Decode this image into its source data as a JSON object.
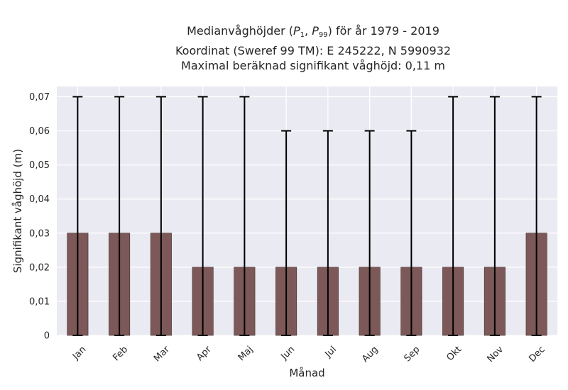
{
  "title": {
    "line1_prefix": "Medianvåghöjder (",
    "p1_sym": "P",
    "p1_sub": "1",
    "sep": ", ",
    "p99_sym": "P",
    "p99_sub": "99",
    "line1_suffix": ") för år 1979 - 2019",
    "line2": "Koordinat (Sweref 99 TM): E 245222, N 5990932",
    "line3": "Maximal beräknad signifikant våghöjd: 0,11 m"
  },
  "colors": {
    "bar": "#7d5858",
    "plot_bg": "#eaeaf2",
    "grid": "#ffffff",
    "errorbar": "#000000"
  },
  "chart_data": {
    "type": "bar",
    "categories": [
      "Jan",
      "Feb",
      "Mar",
      "Apr",
      "Maj",
      "Jun",
      "Jul",
      "Aug",
      "Sep",
      "Okt",
      "Nov",
      "Dec"
    ],
    "values": [
      0.03,
      0.03,
      0.03,
      0.02,
      0.02,
      0.02,
      0.02,
      0.02,
      0.02,
      0.02,
      0.02,
      0.03
    ],
    "error_low": [
      0,
      0,
      0,
      0,
      0,
      0,
      0,
      0,
      0,
      0,
      0,
      0
    ],
    "error_high": [
      0.07,
      0.07,
      0.07,
      0.07,
      0.07,
      0.06,
      0.06,
      0.06,
      0.06,
      0.07,
      0.07,
      0.07
    ],
    "xlabel": "Månad",
    "ylabel": "Signifikant våghöjd (m)",
    "ylim": [
      0,
      0.073
    ],
    "yticks": [
      0,
      0.01,
      0.02,
      0.03,
      0.04,
      0.05,
      0.06,
      0.07
    ],
    "ytick_labels": [
      "0",
      "0,01",
      "0,02",
      "0,03",
      "0,04",
      "0,05",
      "0,06",
      "0,07"
    ],
    "grid": true,
    "legend": "none"
  }
}
